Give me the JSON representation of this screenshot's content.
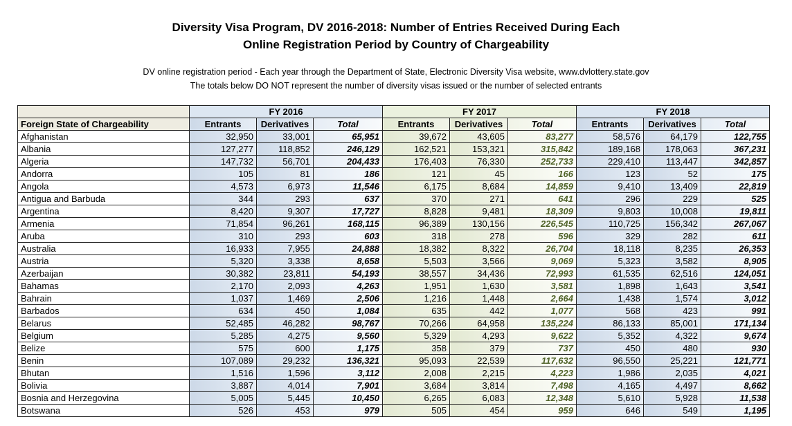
{
  "title": {
    "line1": "Diversity Visa Program, DV 2016-2018: Number of Entries Received During Each",
    "line2": "Online Registration Period by Country of Chargeability"
  },
  "subtitle": {
    "line1": "DV online registration period - Each year through the Department of State, Electronic Diversity Visa website, www.dvlottery.state.gov",
    "line2": "The totals below DO NOT represent the number of diversity visas issued or the number of selected entrants"
  },
  "table": {
    "first_column_header": "Foreign State of Chargeability",
    "fiscal_years": [
      "FY 2016",
      "FY 2017",
      "FY 2018"
    ],
    "sub_headers": [
      "Entrants",
      "Derivatives",
      "Total"
    ],
    "rows": [
      [
        "Afghanistan",
        "32,950",
        "33,001",
        "65,951",
        "39,672",
        "43,605",
        "83,277",
        "58,576",
        "64,179",
        "122,755"
      ],
      [
        "Albania",
        "127,277",
        "118,852",
        "246,129",
        "162,521",
        "153,321",
        "315,842",
        "189,168",
        "178,063",
        "367,231"
      ],
      [
        "Algeria",
        "147,732",
        "56,701",
        "204,433",
        "176,403",
        "76,330",
        "252,733",
        "229,410",
        "113,447",
        "342,857"
      ],
      [
        "Andorra",
        "105",
        "81",
        "186",
        "121",
        "45",
        "166",
        "123",
        "52",
        "175"
      ],
      [
        "Angola",
        "4,573",
        "6,973",
        "11,546",
        "6,175",
        "8,684",
        "14,859",
        "9,410",
        "13,409",
        "22,819"
      ],
      [
        "Antigua and Barbuda",
        "344",
        "293",
        "637",
        "370",
        "271",
        "641",
        "296",
        "229",
        "525"
      ],
      [
        "Argentina",
        "8,420",
        "9,307",
        "17,727",
        "8,828",
        "9,481",
        "18,309",
        "9,803",
        "10,008",
        "19,811"
      ],
      [
        "Armenia",
        "71,854",
        "96,261",
        "168,115",
        "96,389",
        "130,156",
        "226,545",
        "110,725",
        "156,342",
        "267,067"
      ],
      [
        "Aruba",
        "310",
        "293",
        "603",
        "318",
        "278",
        "596",
        "329",
        "282",
        "611"
      ],
      [
        "Australia",
        "16,933",
        "7,955",
        "24,888",
        "18,382",
        "8,322",
        "26,704",
        "18,118",
        "8,235",
        "26,353"
      ],
      [
        "Austria",
        "5,320",
        "3,338",
        "8,658",
        "5,503",
        "3,566",
        "9,069",
        "5,323",
        "3,582",
        "8,905"
      ],
      [
        "Azerbaijan",
        "30,382",
        "23,811",
        "54,193",
        "38,557",
        "34,436",
        "72,993",
        "61,535",
        "62,516",
        "124,051"
      ],
      [
        "Bahamas",
        "2,170",
        "2,093",
        "4,263",
        "1,951",
        "1,630",
        "3,581",
        "1,898",
        "1,643",
        "3,541"
      ],
      [
        "Bahrain",
        "1,037",
        "1,469",
        "2,506",
        "1,216",
        "1,448",
        "2,664",
        "1,438",
        "1,574",
        "3,012"
      ],
      [
        "Barbados",
        "634",
        "450",
        "1,084",
        "635",
        "442",
        "1,077",
        "568",
        "423",
        "991"
      ],
      [
        "Belarus",
        "52,485",
        "46,282",
        "98,767",
        "70,266",
        "64,958",
        "135,224",
        "86,133",
        "85,001",
        "171,134"
      ],
      [
        "Belgium",
        "5,285",
        "4,275",
        "9,560",
        "5,329",
        "4,293",
        "9,622",
        "5,352",
        "4,322",
        "9,674"
      ],
      [
        "Belize",
        "575",
        "600",
        "1,175",
        "358",
        "379",
        "737",
        "450",
        "480",
        "930"
      ],
      [
        "Benin",
        "107,089",
        "29,232",
        "136,321",
        "95,093",
        "22,539",
        "117,632",
        "96,550",
        "25,221",
        "121,771"
      ],
      [
        "Bhutan",
        "1,516",
        "1,596",
        "3,112",
        "2,008",
        "2,215",
        "4,223",
        "1,986",
        "2,035",
        "4,021"
      ],
      [
        "Bolivia",
        "3,887",
        "4,014",
        "7,901",
        "3,684",
        "3,814",
        "7,498",
        "4,165",
        "4,497",
        "8,662"
      ],
      [
        "Bosnia and Herzegovina",
        "5,005",
        "5,445",
        "10,450",
        "6,265",
        "6,083",
        "12,348",
        "5,610",
        "5,928",
        "11,538"
      ],
      [
        "Botswana",
        "526",
        "453",
        "979",
        "505",
        "454",
        "959",
        "646",
        "549",
        "1,195"
      ]
    ]
  },
  "colors": {
    "fy2016": "#dce6f1",
    "fy2017": "#ebf1de",
    "fy2018": "#dce6f1",
    "name_header": "#eeece1",
    "fy2017_total_text": "#4f6228"
  }
}
